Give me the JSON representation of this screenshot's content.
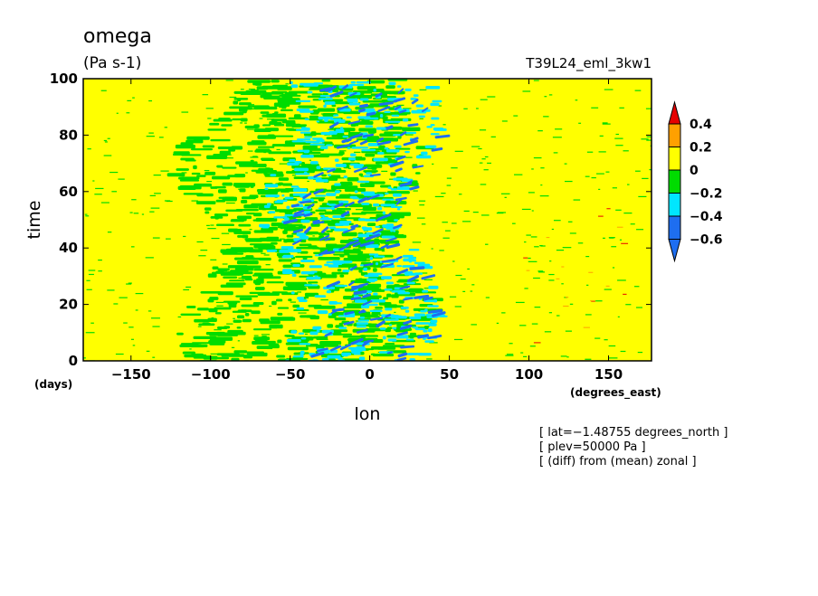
{
  "chart_data": {
    "type": "heatmap",
    "title": "omega",
    "units": "(Pa s-1)",
    "experiment": "T39L24_eml_3kw1",
    "xlabel": "lon",
    "ylabel": "time",
    "x_units": "(degrees_east)",
    "y_units": "(days)",
    "xlim": [
      -180,
      177
    ],
    "ylim": [
      0,
      100
    ],
    "x_ticks": [
      -150,
      -100,
      -50,
      0,
      50,
      100,
      150
    ],
    "x_tick_labels": [
      "−150",
      "−100",
      "−50",
      "0",
      "50",
      "100",
      "150"
    ],
    "y_ticks": [
      0,
      20,
      40,
      60,
      80,
      100
    ],
    "y_tick_labels": [
      "0",
      "20",
      "40",
      "60",
      "80",
      "100"
    ],
    "colorbar": {
      "levels": [
        -0.6,
        -0.4,
        -0.2,
        0,
        0.2,
        0.4
      ],
      "labels": [
        "−0.6",
        "−0.4",
        "−0.2",
        "0",
        "0.2",
        "0.4"
      ],
      "colors": [
        "#1e6ef0",
        "#00e6ff",
        "#00dc00",
        "#ffff00",
        "#ffa000",
        "#e60000"
      ],
      "under_color": "#1e6ef0",
      "over_color": "#e60000"
    },
    "background_color": "#ffff00",
    "ascent_region_lon": [
      -130,
      55
    ],
    "notes": [
      "[ lat=−1.48755 degrees_north ]",
      "[ plev=50000 Pa ]",
      "[ (diff) from (mean) zonal ]"
    ]
  }
}
